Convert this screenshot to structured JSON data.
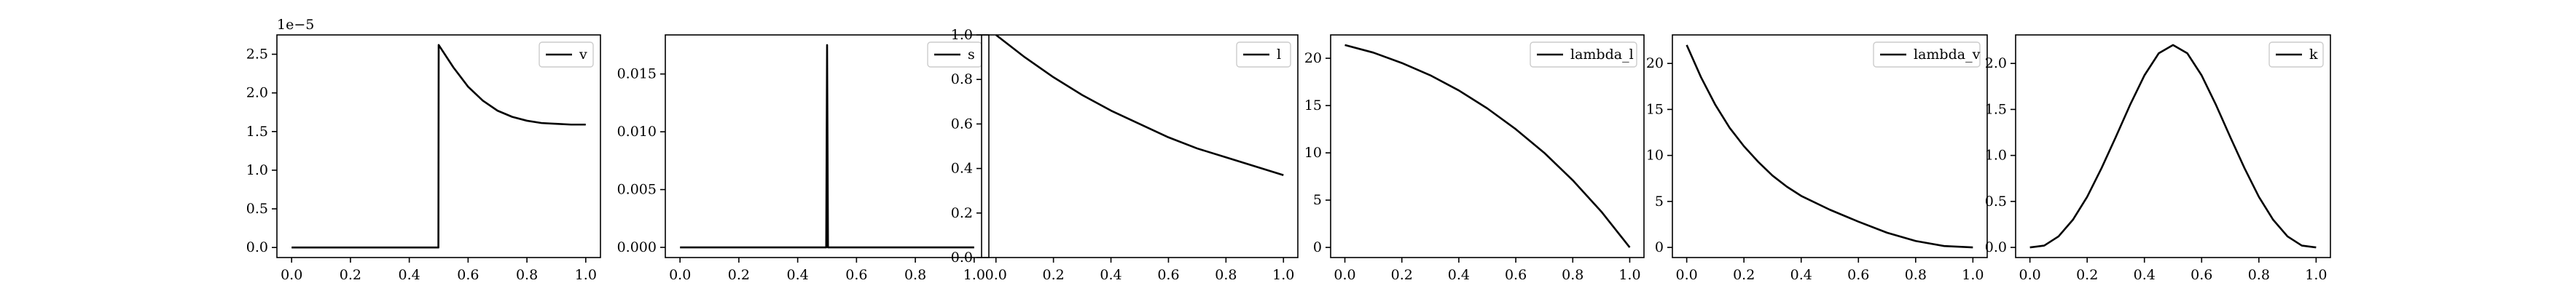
{
  "figure": {
    "background": "#ffffff",
    "line_color": "#000000"
  },
  "chart_data": [
    {
      "type": "line",
      "series": [
        {
          "name": "v",
          "x": [
            0.0,
            0.499,
            0.5,
            0.55,
            0.6,
            0.65,
            0.7,
            0.75,
            0.8,
            0.85,
            0.9,
            0.95,
            1.0
          ],
          "y": [
            0.0,
            0.0,
            2.62,
            2.33,
            2.08,
            1.9,
            1.77,
            1.69,
            1.64,
            1.61,
            1.6,
            1.59,
            1.59
          ]
        }
      ],
      "xlim": [
        -0.05,
        1.05
      ],
      "ylim": [
        -0.13,
        2.75
      ],
      "xticks": [
        0.0,
        0.2,
        0.4,
        0.6,
        0.8,
        1.0
      ],
      "xticklabels": [
        "0.0",
        "0.2",
        "0.4",
        "0.6",
        "0.8",
        "1.0"
      ],
      "yticks": [
        0.0,
        0.5,
        1.0,
        1.5,
        2.0,
        2.5
      ],
      "yticklabels": [
        "0.0",
        "0.5",
        "1.0",
        "1.5",
        "2.0",
        "2.5"
      ],
      "offset_text": "1e−5",
      "legend": "top-right",
      "grid": false
    },
    {
      "type": "line",
      "series": [
        {
          "name": "s",
          "x": [
            0.0,
            0.497,
            0.5,
            0.503,
            1.0
          ],
          "y": [
            0.0,
            0.0,
            0.0175,
            0.0,
            0.0
          ]
        }
      ],
      "xlim": [
        -0.05,
        1.05
      ],
      "ylim": [
        -0.00088,
        0.01838
      ],
      "xticks": [
        0.0,
        0.2,
        0.4,
        0.6,
        0.8,
        1.0
      ],
      "xticklabels": [
        "0.0",
        "0.2",
        "0.4",
        "0.6",
        "0.8",
        "1.0"
      ],
      "yticks": [
        0.0,
        0.005,
        0.01,
        0.015
      ],
      "yticklabels": [
        "0.000",
        "0.005",
        "0.010",
        "0.015"
      ],
      "legend": "top-right",
      "grid": false
    },
    {
      "type": "line",
      "series": [
        {
          "name": "l",
          "x": [
            0.0,
            0.1,
            0.2,
            0.3,
            0.4,
            0.5,
            0.6,
            0.7,
            0.8,
            0.9,
            1.0
          ],
          "y": [
            1.0,
            0.9,
            0.81,
            0.73,
            0.66,
            0.6,
            0.54,
            0.49,
            0.45,
            0.41,
            0.37
          ]
        }
      ],
      "xlim": [
        -0.05,
        1.05
      ],
      "ylim": [
        0.0,
        1.0
      ],
      "xticks": [
        0.0,
        0.2,
        0.4,
        0.6,
        0.8,
        1.0
      ],
      "xticklabels": [
        "0.0",
        "0.2",
        "0.4",
        "0.6",
        "0.8",
        "1.0"
      ],
      "yticks": [
        0.0,
        0.2,
        0.4,
        0.6,
        0.8,
        1.0
      ],
      "yticklabels": [
        "0.0",
        "0.2",
        "0.4",
        "0.6",
        "0.8",
        "1.0"
      ],
      "legend": "top-right",
      "grid": false
    },
    {
      "type": "line",
      "series": [
        {
          "name": "lambda_l",
          "x": [
            0.0,
            0.1,
            0.2,
            0.3,
            0.4,
            0.5,
            0.6,
            0.7,
            0.8,
            0.9,
            1.0
          ],
          "y": [
            21.4,
            20.6,
            19.5,
            18.2,
            16.6,
            14.7,
            12.5,
            10.0,
            7.1,
            3.8,
            0.0
          ]
        }
      ],
      "xlim": [
        -0.05,
        1.05
      ],
      "ylim": [
        -1.07,
        22.47
      ],
      "xticks": [
        0.0,
        0.2,
        0.4,
        0.6,
        0.8,
        1.0
      ],
      "xticklabels": [
        "0.0",
        "0.2",
        "0.4",
        "0.6",
        "0.8",
        "1.0"
      ],
      "yticks": [
        0,
        5,
        10,
        15,
        20
      ],
      "yticklabels": [
        "0",
        "5",
        "10",
        "15",
        "20"
      ],
      "legend": "top-right",
      "grid": false
    },
    {
      "type": "line",
      "series": [
        {
          "name": "lambda_v",
          "x": [
            0.0,
            0.05,
            0.1,
            0.15,
            0.2,
            0.25,
            0.3,
            0.35,
            0.4,
            0.5,
            0.6,
            0.7,
            0.8,
            0.9,
            1.0
          ],
          "y": [
            22.0,
            18.5,
            15.5,
            13.0,
            11.0,
            9.3,
            7.8,
            6.6,
            5.6,
            4.1,
            2.8,
            1.6,
            0.7,
            0.15,
            0.0
          ]
        }
      ],
      "xlim": [
        -0.05,
        1.05
      ],
      "ylim": [
        -1.1,
        23.1
      ],
      "xticks": [
        0.0,
        0.2,
        0.4,
        0.6,
        0.8,
        1.0
      ],
      "xticklabels": [
        "0.0",
        "0.2",
        "0.4",
        "0.6",
        "0.8",
        "1.0"
      ],
      "yticks": [
        0,
        5,
        10,
        15,
        20
      ],
      "yticklabels": [
        "0",
        "5",
        "10",
        "15",
        "20"
      ],
      "legend": "top-right",
      "grid": false
    },
    {
      "type": "line",
      "series": [
        {
          "name": "k",
          "x": [
            0.0,
            0.05,
            0.1,
            0.15,
            0.2,
            0.25,
            0.3,
            0.35,
            0.4,
            0.45,
            0.5,
            0.55,
            0.6,
            0.65,
            0.7,
            0.75,
            0.8,
            0.85,
            0.9,
            0.95,
            1.0
          ],
          "y": [
            0.0,
            0.02,
            0.12,
            0.3,
            0.55,
            0.86,
            1.2,
            1.55,
            1.87,
            2.11,
            2.2,
            2.11,
            1.87,
            1.55,
            1.2,
            0.86,
            0.55,
            0.3,
            0.12,
            0.02,
            0.0
          ]
        }
      ],
      "xlim": [
        -0.05,
        1.05
      ],
      "ylim": [
        -0.11,
        2.31
      ],
      "xticks": [
        0.0,
        0.2,
        0.4,
        0.6,
        0.8,
        1.0
      ],
      "xticklabels": [
        "0.0",
        "0.2",
        "0.4",
        "0.6",
        "0.8",
        "1.0"
      ],
      "yticks": [
        0.0,
        0.5,
        1.0,
        1.5,
        2.0
      ],
      "yticklabels": [
        "0.0",
        "0.5",
        "1.0",
        "1.5",
        "2.0"
      ],
      "legend": "top-right",
      "grid": false
    }
  ]
}
